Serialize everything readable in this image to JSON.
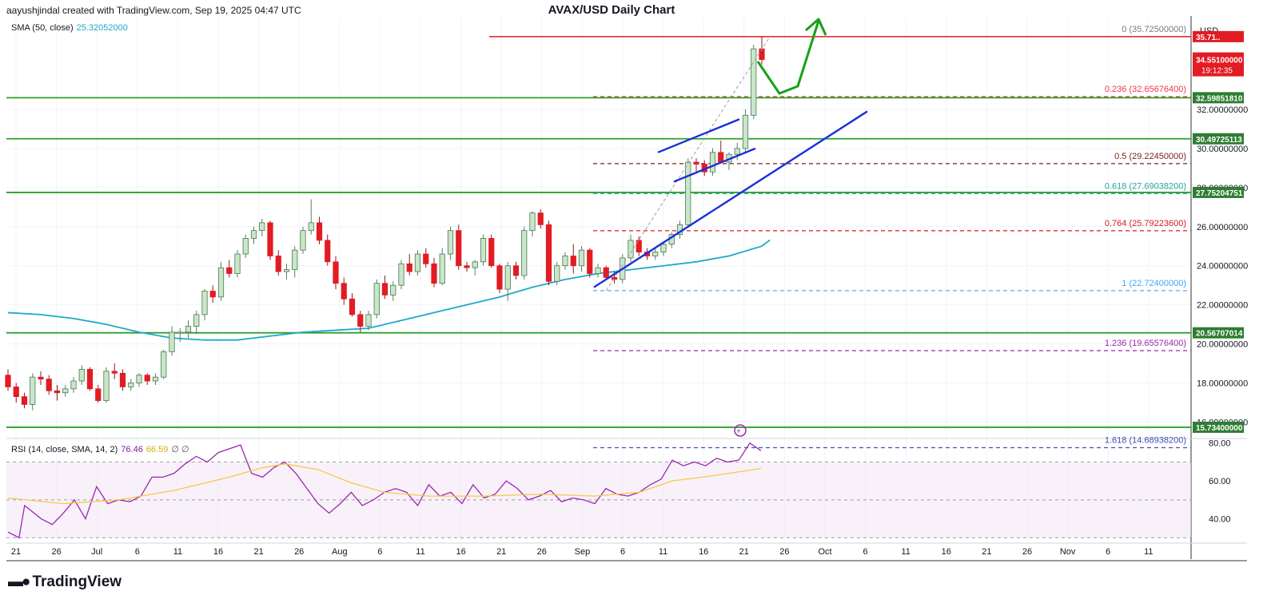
{
  "header": {
    "attribution": "aayushjindal created with TradingView.com, Sep 19, 2025 04:47 UTC",
    "title": "AVAX/USD Daily Chart"
  },
  "legend": {
    "sma_label": "SMA (50, close)",
    "sma_value": "25.32052000",
    "rsi_label": "RSI (14, close, SMA, 14, 2)",
    "rsi_value": "76.46",
    "rsi_sma_value": "66.59",
    "rsi_extra": "∅  ∅"
  },
  "axis": {
    "currency": "USD",
    "current_price": "34.55100000",
    "countdown": "19:12:35"
  },
  "brand": "TradingView",
  "colors": {
    "up": "#c8e6c9",
    "up_border": "#2e7d32",
    "down": "#e31b23",
    "sma": "#1fa8c9",
    "support": "#2ca02c",
    "trendline": "#1930d8",
    "rsi": "#9c27b0",
    "rsi_sma": "#f7c948"
  },
  "chart_data": {
    "type": "candlestick",
    "title": "AVAX/USD Daily Chart",
    "price_ticks": [
      "16.00000000",
      "18.00000000",
      "20.00000000",
      "22.00000000",
      "24.00000000",
      "26.00000000",
      "28.00000000",
      "30.00000000",
      "32.00000000"
    ],
    "ylim": [
      15.2,
      36.7
    ],
    "rsi_ticks": [
      "40.00",
      "60.00",
      "80.00"
    ],
    "rsi_ylim": [
      28,
      82
    ],
    "x_ticks": [
      "21",
      "26",
      "Jul",
      "6",
      "11",
      "16",
      "21",
      "26",
      "Aug",
      "6",
      "11",
      "16",
      "21",
      "26",
      "Sep",
      "6",
      "11",
      "16",
      "21",
      "26",
      "Oct",
      "6",
      "11",
      "16",
      "21",
      "26",
      "Nov",
      "6",
      "11"
    ],
    "support_levels": [
      {
        "label": "32.59851810",
        "value": 32.5985181
      },
      {
        "label": "30.49725113",
        "value": 30.49725113
      },
      {
        "label": "27.75204751",
        "value": 27.75204751
      },
      {
        "label": "20.56707014",
        "value": 20.56707014
      },
      {
        "label": "15.73400000",
        "value": 15.734
      }
    ],
    "resistance_level": {
      "label": "35.71..",
      "value": 35.725
    },
    "fibonacci": [
      {
        "ratio": "0",
        "label": "(35.72500000)",
        "value": 35.725,
        "color": "#787b86"
      },
      {
        "ratio": "0.236",
        "label": "(32.65676400)",
        "value": 32.656764,
        "color": "#f23645"
      },
      {
        "ratio": "0.5",
        "label": "(29.22450000)",
        "value": 29.2245,
        "color": "#7a1f1f"
      },
      {
        "ratio": "0.618",
        "label": "(27.69038200)",
        "value": 27.690382,
        "color": "#26a69a"
      },
      {
        "ratio": "0.764",
        "label": "(25.79223600)",
        "value": 25.792236,
        "color": "#d81b1b"
      },
      {
        "ratio": "1",
        "label": "(22.72400000)",
        "value": 22.724,
        "color": "#42a5f5"
      },
      {
        "ratio": "1.236",
        "label": "(19.65576400)",
        "value": 19.655764,
        "color": "#9c27b0"
      },
      {
        "ratio": "1.618",
        "label": "(14.68938200)",
        "value": 14.689382,
        "color": "#3f51b5"
      }
    ],
    "candles": [
      [
        18.4,
        18.7,
        17.6,
        17.8
      ],
      [
        17.8,
        18.0,
        17.0,
        17.3
      ],
      [
        17.3,
        17.5,
        16.7,
        16.9
      ],
      [
        16.9,
        18.5,
        16.6,
        18.3
      ],
      [
        18.3,
        18.6,
        17.9,
        18.2
      ],
      [
        18.2,
        18.4,
        17.4,
        17.6
      ],
      [
        17.6,
        17.9,
        17.1,
        17.5
      ],
      [
        17.5,
        17.9,
        17.3,
        17.7
      ],
      [
        17.7,
        18.3,
        17.5,
        18.1
      ],
      [
        18.1,
        18.9,
        17.9,
        18.7
      ],
      [
        18.7,
        18.8,
        17.6,
        17.7
      ],
      [
        17.7,
        17.9,
        17.0,
        17.1
      ],
      [
        17.1,
        18.8,
        17.0,
        18.6
      ],
      [
        18.6,
        19.0,
        18.2,
        18.5
      ],
      [
        18.5,
        18.7,
        17.6,
        17.8
      ],
      [
        17.8,
        18.2,
        17.6,
        18.0
      ],
      [
        18.0,
        18.5,
        17.8,
        18.4
      ],
      [
        18.4,
        18.5,
        17.9,
        18.1
      ],
      [
        18.1,
        18.5,
        17.9,
        18.3
      ],
      [
        18.3,
        19.7,
        18.2,
        19.6
      ],
      [
        19.6,
        20.9,
        19.4,
        20.6
      ],
      [
        20.6,
        20.8,
        20.1,
        20.6
      ],
      [
        20.6,
        21.2,
        20.3,
        20.9
      ],
      [
        20.9,
        21.7,
        20.5,
        21.5
      ],
      [
        21.5,
        22.8,
        21.2,
        22.7
      ],
      [
        22.7,
        23.0,
        22.1,
        22.4
      ],
      [
        22.4,
        24.2,
        22.2,
        23.9
      ],
      [
        23.9,
        24.3,
        23.4,
        23.6
      ],
      [
        23.6,
        24.8,
        23.4,
        24.6
      ],
      [
        24.6,
        25.6,
        24.4,
        25.4
      ],
      [
        25.4,
        26.0,
        25.1,
        25.8
      ],
      [
        25.8,
        26.4,
        25.5,
        26.2
      ],
      [
        26.2,
        26.3,
        24.3,
        24.5
      ],
      [
        24.5,
        24.8,
        23.5,
        23.7
      ],
      [
        23.7,
        24.1,
        23.3,
        23.8
      ],
      [
        23.8,
        25.0,
        23.4,
        24.8
      ],
      [
        24.8,
        26.0,
        24.6,
        25.8
      ],
      [
        25.8,
        27.4,
        25.6,
        26.2
      ],
      [
        26.2,
        26.5,
        25.1,
        25.3
      ],
      [
        25.3,
        25.6,
        24.0,
        24.2
      ],
      [
        24.2,
        24.5,
        22.8,
        23.1
      ],
      [
        23.1,
        23.4,
        22.0,
        22.3
      ],
      [
        22.3,
        22.6,
        21.4,
        21.5
      ],
      [
        21.5,
        21.7,
        20.6,
        20.9
      ],
      [
        20.9,
        21.7,
        20.7,
        21.5
      ],
      [
        21.5,
        23.3,
        21.3,
        23.1
      ],
      [
        23.1,
        23.5,
        22.3,
        22.5
      ],
      [
        22.5,
        23.2,
        22.2,
        23.0
      ],
      [
        23.0,
        24.3,
        22.8,
        24.1
      ],
      [
        24.1,
        24.6,
        23.5,
        23.7
      ],
      [
        23.7,
        24.8,
        23.5,
        24.6
      ],
      [
        24.6,
        24.9,
        23.9,
        24.1
      ],
      [
        24.1,
        24.4,
        22.9,
        23.1
      ],
      [
        23.1,
        24.9,
        23.0,
        24.6
      ],
      [
        24.6,
        26.0,
        24.3,
        25.8
      ],
      [
        25.8,
        26.1,
        23.8,
        24.0
      ],
      [
        24.0,
        24.2,
        23.7,
        23.9
      ],
      [
        23.9,
        24.3,
        23.5,
        24.2
      ],
      [
        24.2,
        25.6,
        24.0,
        25.4
      ],
      [
        25.4,
        25.6,
        23.9,
        24.0
      ],
      [
        24.0,
        24.1,
        22.6,
        22.8
      ],
      [
        22.8,
        24.2,
        22.2,
        24.0
      ],
      [
        24.0,
        24.2,
        23.3,
        23.5
      ],
      [
        23.5,
        26.0,
        23.3,
        25.8
      ],
      [
        25.8,
        26.8,
        25.5,
        26.7
      ],
      [
        26.7,
        26.9,
        25.9,
        26.1
      ],
      [
        26.1,
        26.3,
        23.0,
        23.2
      ],
      [
        23.2,
        24.2,
        23.0,
        24.0
      ],
      [
        24.0,
        24.7,
        23.8,
        24.5
      ],
      [
        24.5,
        25.1,
        23.6,
        24.0
      ],
      [
        24.0,
        25.0,
        23.7,
        24.8
      ],
      [
        24.8,
        24.9,
        23.4,
        23.6
      ],
      [
        23.6,
        24.1,
        23.4,
        23.9
      ],
      [
        23.9,
        24.0,
        23.3,
        23.4
      ],
      [
        23.4,
        23.7,
        23.1,
        23.3
      ],
      [
        23.3,
        24.6,
        23.1,
        24.4
      ],
      [
        24.4,
        25.6,
        24.2,
        25.3
      ],
      [
        25.3,
        25.5,
        24.5,
        24.7
      ],
      [
        24.7,
        24.9,
        24.3,
        24.5
      ],
      [
        24.5,
        24.9,
        24.3,
        24.7
      ],
      [
        24.7,
        25.2,
        24.5,
        25.1
      ],
      [
        25.1,
        25.7,
        24.9,
        25.6
      ],
      [
        25.6,
        26.3,
        25.4,
        26.1
      ],
      [
        26.1,
        29.5,
        26.0,
        29.3
      ],
      [
        29.3,
        29.5,
        28.8,
        29.2
      ],
      [
        29.2,
        29.4,
        28.6,
        28.8
      ],
      [
        28.8,
        30.0,
        28.6,
        29.8
      ],
      [
        29.8,
        30.4,
        29.5,
        29.3
      ],
      [
        29.3,
        29.8,
        28.9,
        29.7
      ],
      [
        29.7,
        30.3,
        29.4,
        30.0
      ],
      [
        30.0,
        32.0,
        29.8,
        31.7
      ],
      [
        31.7,
        35.3,
        31.5,
        35.1
      ],
      [
        35.1,
        35.725,
        34.3,
        34.551
      ]
    ],
    "sma50": [
      [
        0,
        21.6
      ],
      [
        4,
        21.5
      ],
      [
        8,
        21.3
      ],
      [
        12,
        21.0
      ],
      [
        16,
        20.6
      ],
      [
        20,
        20.3
      ],
      [
        24,
        20.2
      ],
      [
        28,
        20.2
      ],
      [
        32,
        20.4
      ],
      [
        36,
        20.6
      ],
      [
        40,
        20.7
      ],
      [
        44,
        20.8
      ],
      [
        48,
        21.2
      ],
      [
        52,
        21.6
      ],
      [
        56,
        22.0
      ],
      [
        60,
        22.4
      ],
      [
        64,
        22.9
      ],
      [
        68,
        23.3
      ],
      [
        72,
        23.6
      ],
      [
        76,
        23.8
      ],
      [
        80,
        24.0
      ],
      [
        84,
        24.2
      ],
      [
        88,
        24.5
      ],
      [
        92,
        25.0
      ],
      [
        93,
        25.32
      ]
    ],
    "rsi": [
      [
        0,
        33
      ],
      [
        2,
        30
      ],
      [
        3,
        47
      ],
      [
        6,
        40
      ],
      [
        8,
        37
      ],
      [
        10,
        43
      ],
      [
        12,
        50
      ],
      [
        14,
        40
      ],
      [
        16,
        57
      ],
      [
        18,
        48
      ],
      [
        20,
        50
      ],
      [
        22,
        49
      ],
      [
        24,
        52
      ],
      [
        26,
        62
      ],
      [
        28,
        62
      ],
      [
        30,
        64
      ],
      [
        32,
        69
      ],
      [
        34,
        73
      ],
      [
        36,
        70
      ],
      [
        38,
        75
      ],
      [
        40,
        77
      ],
      [
        42,
        79
      ],
      [
        44,
        64
      ],
      [
        46,
        62
      ],
      [
        48,
        67
      ],
      [
        50,
        70
      ],
      [
        52,
        64
      ],
      [
        54,
        56
      ],
      [
        56,
        48
      ],
      [
        58,
        43
      ],
      [
        60,
        48
      ],
      [
        62,
        54
      ],
      [
        64,
        47
      ],
      [
        66,
        50
      ],
      [
        68,
        54
      ],
      [
        70,
        56
      ],
      [
        72,
        54
      ],
      [
        74,
        47
      ],
      [
        76,
        58
      ],
      [
        78,
        52
      ],
      [
        80,
        54
      ],
      [
        82,
        48
      ],
      [
        84,
        58
      ],
      [
        86,
        51
      ],
      [
        88,
        53
      ],
      [
        90,
        60
      ],
      [
        92,
        56
      ],
      [
        94,
        50
      ],
      [
        96,
        52
      ],
      [
        98,
        55
      ],
      [
        100,
        49
      ],
      [
        102,
        51
      ],
      [
        104,
        50
      ],
      [
        106,
        48
      ],
      [
        108,
        56
      ],
      [
        110,
        53
      ],
      [
        112,
        52
      ],
      [
        114,
        54
      ],
      [
        116,
        58
      ],
      [
        118,
        61
      ],
      [
        120,
        71
      ],
      [
        122,
        68
      ],
      [
        124,
        70
      ],
      [
        126,
        68
      ],
      [
        128,
        72
      ],
      [
        130,
        70
      ],
      [
        132,
        71
      ],
      [
        134,
        80
      ],
      [
        136,
        76
      ]
    ],
    "rsi_sma": [
      [
        0,
        51
      ],
      [
        10,
        48
      ],
      [
        20,
        50
      ],
      [
        30,
        55
      ],
      [
        40,
        62
      ],
      [
        46,
        67
      ],
      [
        50,
        69
      ],
      [
        56,
        66
      ],
      [
        62,
        59
      ],
      [
        68,
        54
      ],
      [
        76,
        52
      ],
      [
        86,
        52
      ],
      [
        96,
        53
      ],
      [
        106,
        52
      ],
      [
        114,
        54
      ],
      [
        120,
        60
      ],
      [
        128,
        63
      ],
      [
        136,
        66.59
      ]
    ],
    "rsi_bands": [
      70,
      50,
      30
    ]
  }
}
